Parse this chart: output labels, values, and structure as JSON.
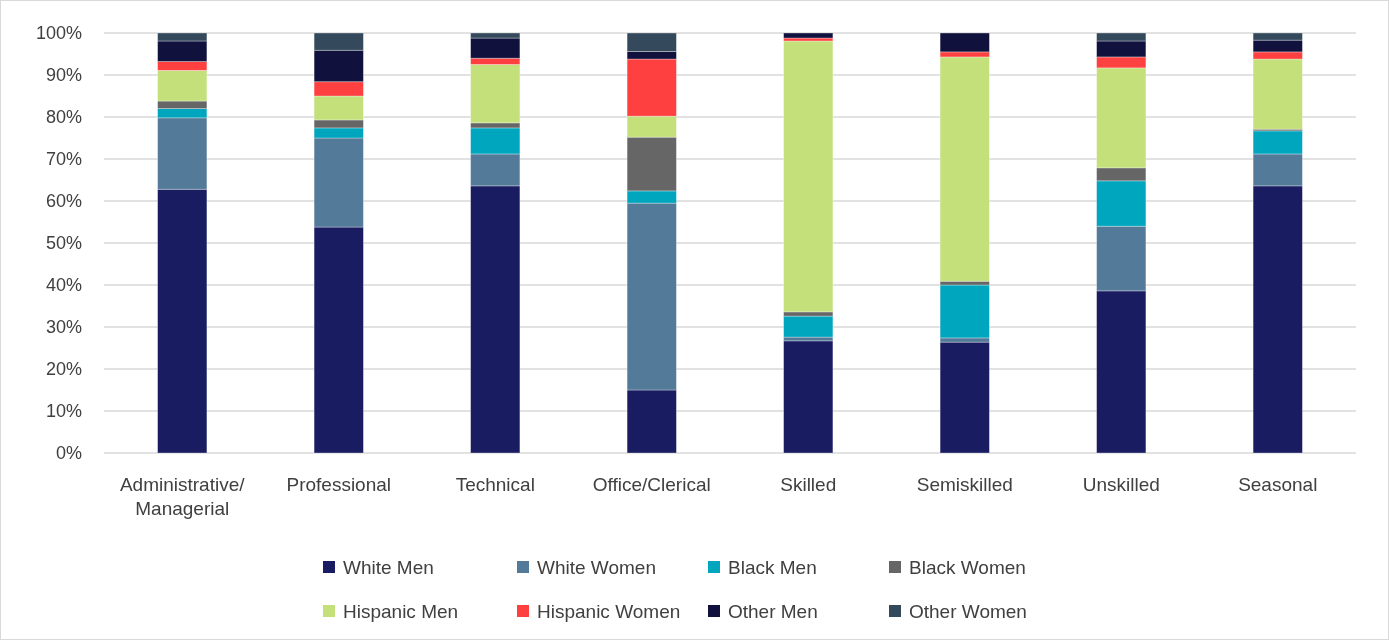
{
  "chart_data": {
    "type": "bar",
    "stacked": true,
    "categories": [
      "Administrative/ Managerial",
      "Professional",
      "Technical",
      "Office/Clerical",
      "Skilled",
      "Semiskilled",
      "Unskilled",
      "Seasonal"
    ],
    "ylim": [
      0,
      100
    ],
    "yticks": [
      {
        "value": 0,
        "label": "0%"
      },
      {
        "value": 10,
        "label": "10%"
      },
      {
        "value": 20,
        "label": "20%"
      },
      {
        "value": 30,
        "label": "30%"
      },
      {
        "value": 40,
        "label": "40%"
      },
      {
        "value": 50,
        "label": "50%"
      },
      {
        "value": 60,
        "label": "60%"
      },
      {
        "value": 70,
        "label": "70%"
      },
      {
        "value": 80,
        "label": "80%"
      },
      {
        "value": 90,
        "label": "90%"
      },
      {
        "value": 100,
        "label": "100%"
      }
    ],
    "grid": "y",
    "legend": "bottom",
    "series": [
      {
        "name": "White Men",
        "color": "#1a1c62",
        "values": [
          62.8,
          53.8,
          63.6,
          15.0,
          26.7,
          26.4,
          38.6,
          63.6
        ]
      },
      {
        "name": "White Women",
        "color": "#537a98",
        "values": [
          17.0,
          21.2,
          7.6,
          44.5,
          0.9,
          1.0,
          15.4,
          7.6
        ]
      },
      {
        "name": "Black Men",
        "color": "#00a6be",
        "values": [
          2.2,
          2.4,
          6.2,
          2.9,
          5.0,
          12.6,
          10.8,
          5.5
        ]
      },
      {
        "name": "Black Women",
        "color": "#666666",
        "values": [
          1.8,
          1.9,
          1.2,
          12.8,
          1.0,
          0.9,
          3.1,
          0.4
        ]
      },
      {
        "name": "Hispanic Men",
        "color": "#c3e07a",
        "values": [
          7.3,
          5.7,
          13.9,
          5.0,
          64.5,
          53.4,
          23.8,
          16.7
        ]
      },
      {
        "name": "Hispanic Women",
        "color": "#ff4040",
        "values": [
          2.1,
          3.4,
          1.5,
          13.6,
          0.7,
          1.2,
          2.6,
          1.7
        ]
      },
      {
        "name": "Other Men",
        "color": "#11113d",
        "values": [
          4.9,
          7.5,
          4.8,
          1.8,
          1.2,
          4.5,
          3.8,
          2.8
        ]
      },
      {
        "name": "Other Women",
        "color": "#344a5c",
        "values": [
          1.9,
          4.1,
          1.2,
          4.4,
          0.0,
          0.0,
          1.9,
          1.7
        ]
      }
    ]
  }
}
